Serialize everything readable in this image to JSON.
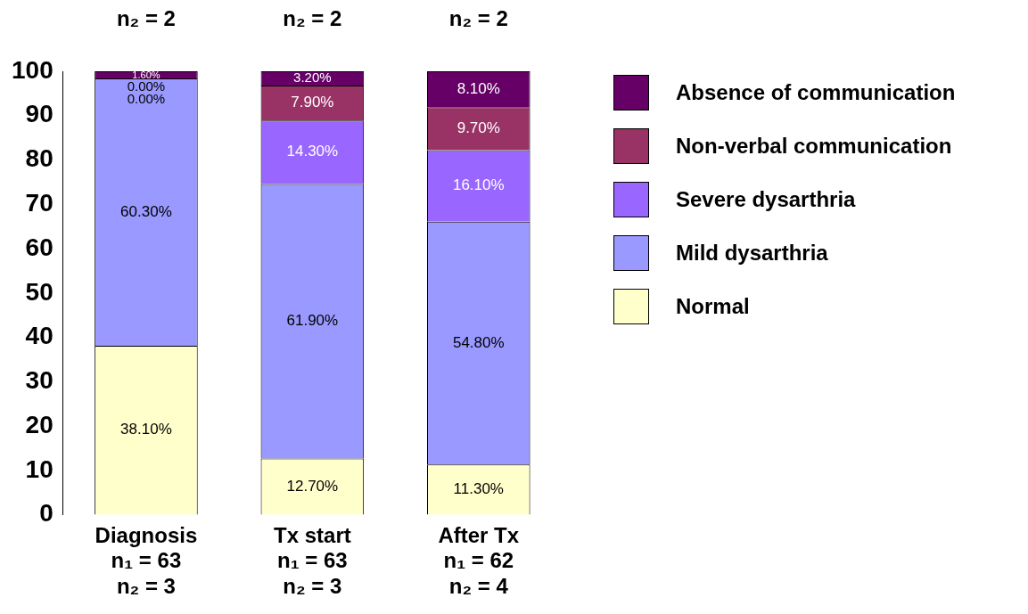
{
  "chart_data": {
    "type": "bar",
    "stacked": true,
    "categories": [
      "Diagnosis\nn₁ = 63\nn₂ = 3",
      "Tx start\nn₁ = 63\nn₂ = 3",
      "After Tx\nn₁ = 62\nn₂ = 4"
    ],
    "series": [
      {
        "name": "Normal",
        "color": "#ffffcc",
        "values": [
          38.1,
          12.7,
          11.3
        ],
        "value_labels": [
          "38.10%",
          "12.70%",
          "11.30%"
        ]
      },
      {
        "name": "Mild dysarthria",
        "color": "#9999ff",
        "values": [
          60.3,
          61.9,
          54.8
        ],
        "value_labels": [
          "60.30%",
          "61.90%",
          "54.80%"
        ]
      },
      {
        "name": "Severe dysarthria",
        "color": "#9966ff",
        "values": [
          0,
          14.3,
          16.1
        ],
        "value_labels": [
          "0.00%",
          "14.30%",
          "16.10%"
        ]
      },
      {
        "name": "Non-verbal communication",
        "color": "#993366",
        "values": [
          0,
          7.9,
          9.7
        ],
        "value_labels": [
          "0.00%",
          "7.90%",
          "9.70%"
        ]
      },
      {
        "name": "Absence of communication",
        "color": "#660066",
        "values": [
          1.6,
          3.2,
          8.1
        ],
        "value_labels": [
          "1.60%",
          "3.20%",
          "8.10%"
        ]
      }
    ],
    "ylim": [
      0,
      100
    ],
    "yticks": [
      0,
      10,
      20,
      30,
      40,
      50,
      60,
      70,
      80,
      90,
      100
    ],
    "annotations": [
      "n₂ = 2",
      "n₂ = 2",
      "n₂ = 2"
    ],
    "grid": false,
    "legend": "right"
  }
}
